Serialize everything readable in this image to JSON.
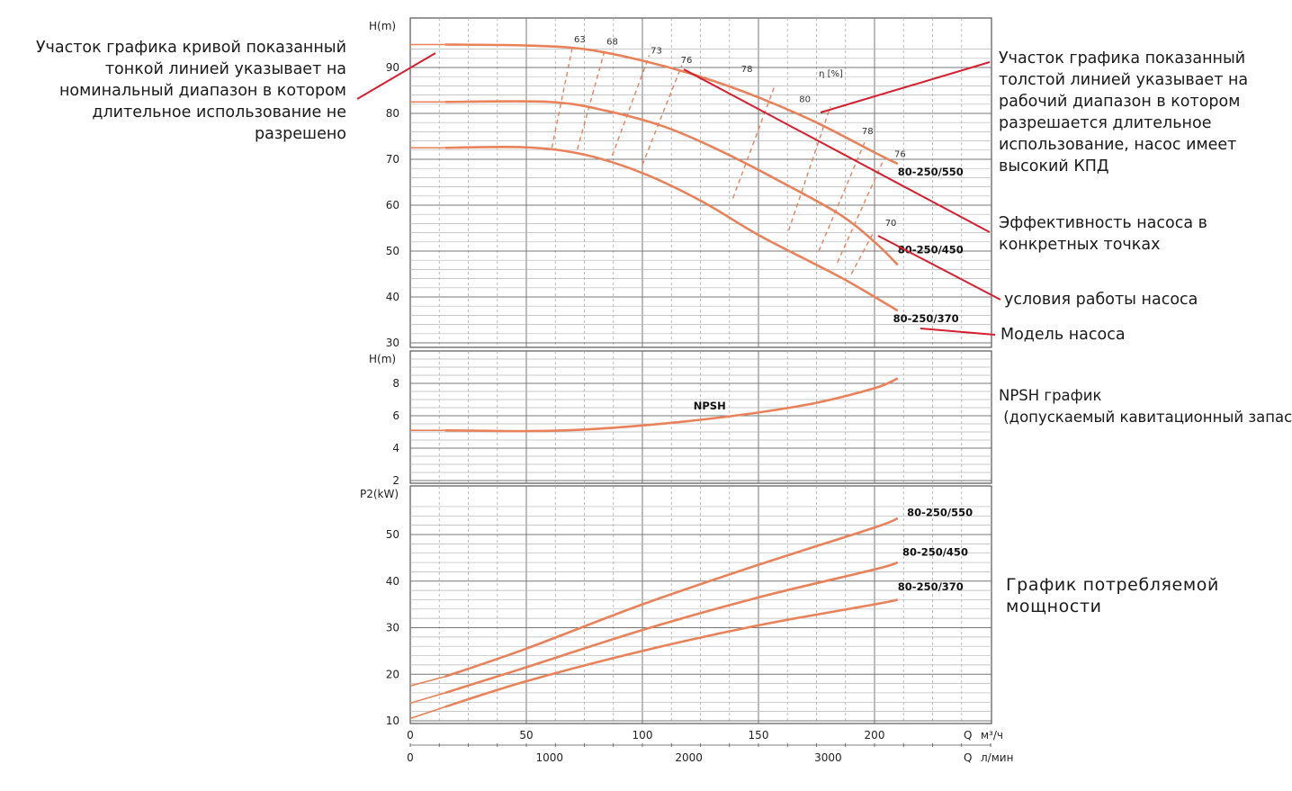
{
  "annotations": {
    "left": "Участок графика кривой показанный\nтонкой линией указывает на\nноминальный диапазон в котором\nдлительное использование не\nразрешено",
    "thick": "Участок графика показанный\nтолстой линией указывает на\nрабочий диапазон в котором\nразрешается длительное\nиспользование, насос имеет\nвысокий КПД",
    "efficiency": "Эффективность насоса в\nконкретных точках",
    "conditions": "условия работы насоса",
    "model": "Модель насоса",
    "npsh": "NPSH график\n (допускаемый кавитационный запас)",
    "power": "График потребляемой\nмощности"
  },
  "colors": {
    "curve": "#e8825a",
    "dash": "#e8825a",
    "pointer": "#d42030",
    "grid": "#9a9a9a"
  },
  "chart_data": [
    {
      "type": "line",
      "ylabel": "H(m)",
      "ylim": [
        30,
        95
      ],
      "yticks": [
        30,
        40,
        50,
        60,
        70,
        80,
        90
      ],
      "xlim": [
        0,
        250
      ],
      "efficiency_unit": "η [%]",
      "series": [
        {
          "name": "80-250/550",
          "x": [
            0,
            15,
            50,
            75,
            100,
            125,
            150,
            175,
            200,
            210
          ],
          "y": [
            95,
            95,
            94.8,
            94,
            91.5,
            88,
            83.5,
            78,
            71.5,
            69
          ]
        },
        {
          "name": "80-250/450",
          "x": [
            0,
            15,
            60,
            85,
            110,
            135,
            160,
            185,
            200,
            210
          ],
          "y": [
            82.5,
            82.5,
            82.5,
            80.5,
            77,
            71.5,
            65,
            58,
            52,
            47
          ]
        },
        {
          "name": "80-250/370",
          "x": [
            0,
            15,
            50,
            75,
            100,
            125,
            150,
            175,
            190,
            210
          ],
          "y": [
            72.5,
            72.5,
            72.6,
            71,
            67,
            61,
            53.5,
            47,
            43,
            37
          ]
        }
      ],
      "efficiency_lines": [
        {
          "label": "63",
          "x": [
            61,
            70
          ],
          "y": [
            72.5,
            94.8
          ]
        },
        {
          "label": "68",
          "x": [
            72,
            84
          ],
          "y": [
            72.2,
            94.2
          ]
        },
        {
          "label": "73",
          "x": [
            87,
            103
          ],
          "y": [
            70.8,
            92.7
          ]
        },
        {
          "label": "76",
          "x": [
            100,
            117
          ],
          "y": [
            68.8,
            90.5
          ]
        },
        {
          "label": "78",
          "x": [
            139,
            157
          ],
          "y": [
            61.5,
            86
          ]
        },
        {
          "label": "80",
          "x": [
            163,
            181
          ],
          "y": [
            54.5,
            81.5
          ]
        },
        {
          "label": "78",
          "x": [
            176,
            196
          ],
          "y": [
            50,
            74
          ]
        },
        {
          "label": "76",
          "x": [
            184,
            204
          ],
          "y": [
            47.5,
            70
          ]
        },
        {
          "label": "70",
          "x": [
            190,
            200
          ],
          "y": [
            45,
            54.5
          ]
        }
      ],
      "efficiency_labels": [
        {
          "text": "63",
          "x": 73,
          "y": 95.5
        },
        {
          "text": "68",
          "x": 87,
          "y": 95
        },
        {
          "text": "73",
          "x": 106,
          "y": 93
        },
        {
          "text": "76",
          "x": 119,
          "y": 91
        },
        {
          "text": "78",
          "x": 145,
          "y": 89
        },
        {
          "text": "80",
          "x": 170,
          "y": 82.5
        },
        {
          "text": "78",
          "x": 197,
          "y": 75.5
        },
        {
          "text": "76",
          "x": 211,
          "y": 70.5
        },
        {
          "text": "70",
          "x": 207,
          "y": 55.5
        }
      ],
      "eta_label": {
        "text": "η [%]",
        "x": 176,
        "y": 88
      },
      "model_labels": [
        {
          "text": "80-250/550",
          "x": 210,
          "y": 66.5
        },
        {
          "text": "80-250/450",
          "x": 210,
          "y": 49.5
        },
        {
          "text": "80-250/370",
          "x": 208,
          "y": 34.5
        }
      ]
    },
    {
      "type": "line",
      "ylabel": "H(m)",
      "ylim": [
        2,
        10
      ],
      "yticks": [
        2,
        4,
        6,
        8
      ],
      "xlim": [
        0,
        250
      ],
      "series": [
        {
          "name": "NPSH",
          "x": [
            0,
            15,
            50,
            75,
            100,
            125,
            150,
            175,
            200,
            210
          ],
          "y": [
            5.1,
            5.1,
            5.05,
            5.15,
            5.4,
            5.75,
            6.2,
            6.8,
            7.7,
            8.3
          ]
        }
      ],
      "curve_label": {
        "text": "NPSH",
        "x": 122,
        "y": 6.4
      }
    },
    {
      "type": "line",
      "ylabel": "P2(kW)",
      "ylim": [
        10,
        57
      ],
      "yticks": [
        10,
        20,
        30,
        40,
        50
      ],
      "xlim": [
        0,
        250
      ],
      "series": [
        {
          "name": "80-250/550",
          "x": [
            0,
            15,
            50,
            100,
            150,
            200,
            210
          ],
          "y": [
            17.5,
            19.5,
            25.5,
            35,
            43.5,
            51.5,
            53.5
          ]
        },
        {
          "name": "80-250/450",
          "x": [
            0,
            15,
            50,
            100,
            150,
            200,
            210
          ],
          "y": [
            13.8,
            16,
            21.5,
            29.5,
            36.5,
            42.5,
            44
          ]
        },
        {
          "name": "80-250/370",
          "x": [
            0,
            15,
            50,
            100,
            150,
            200,
            210
          ],
          "y": [
            10.5,
            13,
            18.5,
            25,
            30.5,
            35,
            36
          ]
        }
      ],
      "model_labels": [
        {
          "text": "80-250/550",
          "x": 214,
          "y": 54
        },
        {
          "text": "80-250/450",
          "x": 212,
          "y": 45.5
        },
        {
          "text": "80-250/370",
          "x": 210,
          "y": 38
        }
      ]
    }
  ],
  "x_axis": {
    "flow_m3h": {
      "label_q": "Q",
      "unit": "м³/ч",
      "ticks": [
        0,
        50,
        100,
        150,
        200
      ]
    },
    "flow_lmin": {
      "label_q": "Q",
      "unit": "л/мин",
      "ticks": [
        0,
        1000,
        2000,
        3000
      ]
    }
  }
}
